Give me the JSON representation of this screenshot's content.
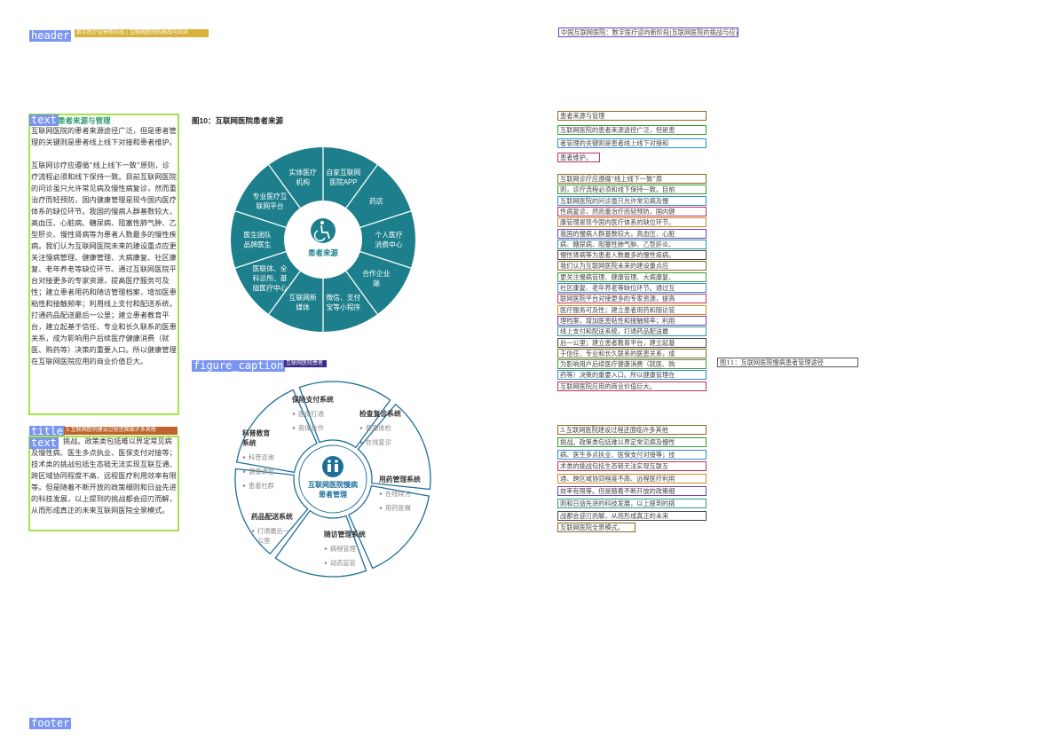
{
  "layout_tags": {
    "header": "header",
    "text_1": "text",
    "figure_caption": "figure_caption",
    "title": "title",
    "text_2": "text",
    "footer": "footer"
  },
  "header_strip": "数字医疗迎来新阶段 | 互联网医院的挑战与应对",
  "caption_strip": "互联网医院患者",
  "title_strip": "3.互联网医院建设过程还面临许多其他",
  "left": {
    "section_title": "患者来源与管理",
    "paragraph_1": "互联网医院的患者来源途径广泛，但是患者管理的关键则是患者线上线下对接和患者维护。",
    "paragraph_2": "互联网诊疗应遵循“线上线下一致”原则，诊疗流程必须和线下保持一致。目前互联网医院的问诊虽只允许常见病及慢性病复诊，然而重治疗而轻预防，国内健康管理是现今国内医疗体系的缺位环节。我国的慢病人群基数较大，高血压、心脏病、糖尿病、阻塞性肺气肿、乙型肝炎、慢性肾病等为患者人数最多的慢性疾病。我们认为互联网医院未来的建设重点应更关注慢病管理、健康管理、大病康复、社区康复、老年养老等缺位环节。通过互联网医院平台对接更多的专家资源，提高医疗服务可及性；建立患者用药和随访管理档案，增加医患粘性和接触频率；利用线上支付和配送系统，打通药品配送最后一公里；建立患者教育平台，建立起基于信任、专业和长久联系的医患关系，成为影响用户后续医疗健康消费（就医、购药等）决策的重要入口。所以健康管理在互联网医院应用的商业价值巨大。",
    "paragraph_3": "挑战。政策类包括难以界定常见病及慢性病、医生多点执业、医保支付对接等；技术类的挑战包括生态链无法实现互联互通、跨区域协同程度不高、远程医疗利用效率有限等。但是随着不断开放的政策细则和日益先进的科技发展，以上提到的挑战都会迎刃而解，从而形成真正的未来互联网医院全景模式。"
  },
  "figure10": {
    "title": "图10：互联网医院患者来源",
    "center_label": "患者来源",
    "segments": [
      "自家互联网医院APP",
      "药店",
      "个人医疗消费中心",
      "合作企业端",
      "微信、支付宝等小程序",
      "互联网新媒体",
      "医联体、全科诊所、基础医疗中心",
      "医生团队品牌医生",
      "专业医疗互联网平台",
      "实体医疗机构"
    ],
    "colors": {
      "ring": "#1d7f8c",
      "center": "#1d7f8c",
      "line": "#ffffff",
      "text": "#ffffff"
    }
  },
  "figure11": {
    "center_label_1": "互联网医院慢病",
    "center_label_2": "患者管理",
    "systems": [
      {
        "name": "保险支付系统",
        "items": [
          "医保打通",
          "商保合作"
        ]
      },
      {
        "name": "检查复诊系统",
        "items": [
          "健康体检",
          "在线复诊"
        ]
      },
      {
        "name": "用药管理系统",
        "items": [
          "在线续方",
          "用药医嘱"
        ]
      },
      {
        "name": "随访管理系统",
        "items": [
          "病程管理",
          "动态监管"
        ]
      },
      {
        "name": "药品配送系统",
        "items": [
          "打通最后一公里"
        ]
      },
      {
        "name": "科普教育系统",
        "items": [
          "科普咨询",
          "健康课堂",
          "患者社群"
        ]
      }
    ],
    "colors": {
      "stroke": "#1d6f9a",
      "center": "#1d6f9a",
      "title": "#333333",
      "item": "#8a8a8a"
    }
  },
  "right": {
    "title_line": "中国互联网医院：数字医疗迎向新阶段|互联网医院的挑战与应对",
    "lines_a": [
      "患者来源与管理",
      "互联网医院的患者来源途径广泛，但是患",
      "者管理的关键则是患者线上线下对接和",
      "患者维护。"
    ],
    "lines_b": [
      "互联网诊疗应遵循“线上线下一致”原",
      "则，诊疗流程必须和线下保持一致。目前",
      "互联网医院的问诊虽只允许常见病及慢",
      "性病复诊，然而重治疗而轻预防，国内健",
      "康管理是现今国内医疗体系的缺位环节。",
      "我国的慢病人群基数较大，高血压、心脏",
      "病、糖尿病、阻塞性肺气肿、乙型肝炎、",
      "慢性肾病等为患者人数最多的慢性疾病。",
      "我们认为互联网医院未来的建设重点应",
      "更关注慢病管理、健康管理、大病康复、",
      "社区康复、老年养老等缺位环节。通过互",
      "联网医院平台对接更多的专家资源，提高",
      "医疗服务可及性；建立患者用药和随访管",
      "理档案，增加医患粘性和接触频率；利用",
      "线上支付和配送系统，打通药品配送最",
      "后一公里；建立患者教育平台，建立起基",
      "于信任、专业和长久联系的医患关系，成",
      "为影响用户后续医疗健康消费（就医、购",
      "药等）决策的重要入口。所以健康管理在",
      "互联网医院应用的商业价值巨大。"
    ],
    "lines_c": [
      "3.互联网医院建设过程还面临许多其他",
      "挑战。政策类包括难以界定常见病及慢性",
      "病、医生多点执业、医保支付对接等；技",
      "术类的挑战包括生态链无法实现互联互",
      "通、跨区域协同程度不高、远程医疗利用",
      "效率有限等。但是随着不断开放的政策细",
      "则和日益先进的科技发展，以上提到的挑",
      "战都会迎刃而解，从而形成真正的未来",
      "互联网医院全景模式。"
    ],
    "figure11_caption": "图11：互联网医院慢病患者管理途径"
  }
}
